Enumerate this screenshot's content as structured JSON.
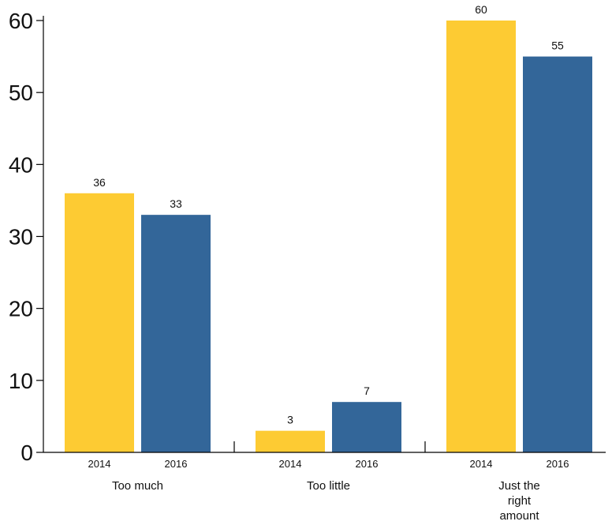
{
  "chart_data": {
    "type": "bar",
    "categories": [
      "Too much",
      "Too little",
      "Just the right amount"
    ],
    "category_label_lines": [
      [
        "Too much"
      ],
      [
        "Too little"
      ],
      [
        "Just the",
        "right",
        "amount"
      ]
    ],
    "series": [
      {
        "name": "2014",
        "color": "#fdcb33",
        "values": [
          36,
          3,
          60
        ]
      },
      {
        "name": "2016",
        "color": "#336699",
        "values": [
          33,
          7,
          55
        ]
      }
    ],
    "ylim": [
      0,
      60
    ],
    "yticks": [
      0,
      10,
      20,
      30,
      40,
      50,
      60
    ],
    "title": "",
    "xlabel": "",
    "ylabel": "",
    "grid": false,
    "legend": "none"
  }
}
